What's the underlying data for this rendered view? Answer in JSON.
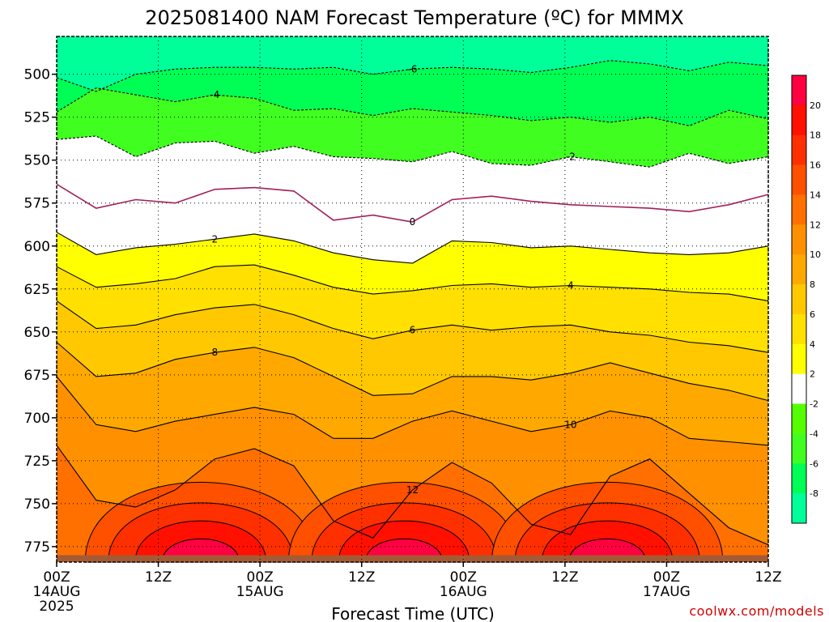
{
  "chart_data": {
    "type": "contour",
    "title": "2025081400 NAM Forecast Temperature (ºC) for MMMX",
    "xlabel": "Forecast Time (UTC)",
    "ylabel": "",
    "x_ticks": [
      {
        "hours": 0,
        "label": "00Z",
        "sub1": "14AUG",
        "sub2": "2025"
      },
      {
        "hours": 12,
        "label": "12Z",
        "sub1": "",
        "sub2": ""
      },
      {
        "hours": 24,
        "label": "00Z",
        "sub1": "15AUG",
        "sub2": ""
      },
      {
        "hours": 36,
        "label": "12Z",
        "sub1": "",
        "sub2": ""
      },
      {
        "hours": 48,
        "label": "00Z",
        "sub1": "16AUG",
        "sub2": ""
      },
      {
        "hours": 60,
        "label": "12Z",
        "sub1": "",
        "sub2": ""
      },
      {
        "hours": 72,
        "label": "00Z",
        "sub1": "17AUG",
        "sub2": ""
      },
      {
        "hours": 84,
        "label": "12Z",
        "sub1": "",
        "sub2": ""
      }
    ],
    "x_range_hours": [
      0,
      84
    ],
    "y_ticks": [
      500,
      525,
      550,
      575,
      600,
      625,
      650,
      675,
      700,
      725,
      750,
      775
    ],
    "y_range_hPa": [
      478,
      784
    ],
    "colorbar_levels": [
      -8,
      -6,
      -4,
      -2,
      2,
      4,
      6,
      8,
      10,
      12,
      14,
      16,
      18,
      20
    ],
    "colorbar_labels": [
      "20",
      "18",
      "16",
      "14",
      "12",
      "10",
      "8",
      "6",
      "4",
      "2",
      "-2",
      "-4",
      "-6",
      "-8"
    ],
    "contour_levels": [
      -6,
      -4,
      -2,
      0,
      2,
      4,
      6,
      8,
      10,
      12,
      14
    ],
    "isotherms": [
      {
        "level": -6,
        "pressure_hPa": [
          502,
          510,
          500,
          497,
          496,
          496,
          497,
          496,
          500,
          497,
          496,
          497,
          499,
          496,
          492,
          494,
          498,
          493,
          495
        ],
        "label": "-6"
      },
      {
        "level": -4,
        "pressure_hPa": [
          522,
          508,
          512,
          516,
          512,
          514,
          521,
          520,
          524,
          520,
          522,
          524,
          527,
          525,
          528,
          525,
          530,
          521,
          526
        ],
        "label": "-4"
      },
      {
        "level": -2,
        "pressure_hPa": [
          538,
          536,
          548,
          540,
          539,
          546,
          542,
          548,
          549,
          551,
          545,
          552,
          553,
          548,
          551,
          554,
          546,
          552,
          548
        ],
        "label": "-2"
      },
      {
        "level": 0,
        "pressure_hPa": [
          564,
          578,
          573,
          575,
          567,
          566,
          568,
          585,
          582,
          586,
          573,
          571,
          574,
          576,
          577,
          578,
          580,
          576,
          570
        ],
        "label": "0"
      },
      {
        "level": 2,
        "pressure_hPa": [
          592,
          605,
          601,
          599,
          596,
          593,
          597,
          604,
          608,
          610,
          597,
          598,
          601,
          600,
          602,
          604,
          605,
          604,
          600
        ],
        "label": "2"
      },
      {
        "level": 4,
        "pressure_hPa": [
          612,
          624,
          622,
          619,
          612,
          611,
          617,
          624,
          628,
          626,
          623,
          622,
          624,
          623,
          624,
          625,
          627,
          628,
          632
        ],
        "label": "4"
      },
      {
        "level": 6,
        "pressure_hPa": [
          632,
          648,
          646,
          640,
          636,
          634,
          640,
          648,
          654,
          649,
          646,
          649,
          647,
          646,
          650,
          652,
          656,
          658,
          662
        ],
        "label": "6"
      },
      {
        "level": 8,
        "pressure_hPa": [
          656,
          676,
          674,
          666,
          662,
          659,
          665,
          676,
          687,
          686,
          676,
          676,
          678,
          674,
          668,
          674,
          680,
          684,
          690
        ],
        "label": "8"
      },
      {
        "level": 10,
        "pressure_hPa": [
          676,
          704,
          708,
          702,
          698,
          694,
          698,
          712,
          712,
          702,
          696,
          702,
          708,
          704,
          696,
          700,
          712,
          714,
          716
        ],
        "label": "10"
      },
      {
        "level": 12,
        "pressure_hPa": [
          716,
          748,
          752,
          742,
          724,
          718,
          728,
          760,
          770,
          742,
          726,
          738,
          762,
          768,
          734,
          724,
          744,
          764,
          774
        ],
        "label": "12"
      }
    ],
    "surface_pressure_hPa": 780,
    "credit": "coolwx.com/models",
    "colors": {
      "white": "#ffffff",
      "cold_-8": "#00ff99",
      "cold_-6": "#00ff55",
      "cold_-4": "#40ff20",
      "cold_-2": "#55ff00",
      "warm_2": "#ffff00",
      "warm_4": "#ffe000",
      "warm_6": "#ffc800",
      "warm_8": "#ffa800",
      "warm_10": "#ff9000",
      "warm_12": "#ff7000",
      "warm_14": "#ff5000",
      "warm_16": "#ff3000",
      "warm_18": "#ff1000",
      "warm_20": "#ff0040",
      "zero_line": "#a0205a",
      "ground": "#a55a36",
      "credit": "#d00000"
    }
  }
}
